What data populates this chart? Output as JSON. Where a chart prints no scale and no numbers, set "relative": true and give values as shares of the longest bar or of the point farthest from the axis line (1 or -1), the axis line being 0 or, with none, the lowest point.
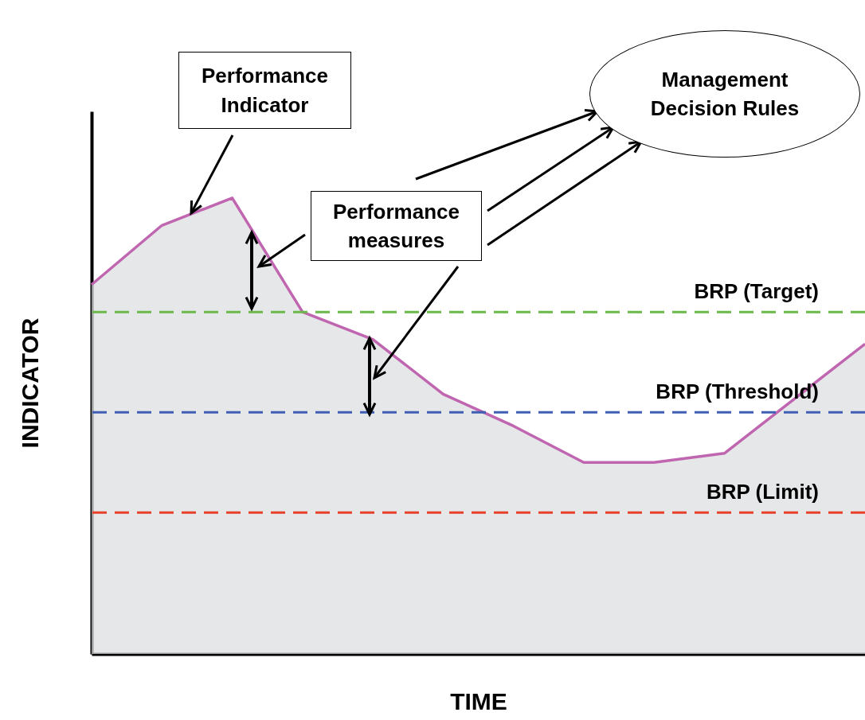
{
  "chart_data": {
    "type": "area",
    "xlabel": "TIME",
    "ylabel": "INDICATOR",
    "relative": true,
    "categories": [
      null,
      null,
      null,
      null,
      null,
      null,
      null,
      null,
      null,
      null,
      null,
      null
    ],
    "series": [
      {
        "color": "#c066b0",
        "values": [
          0.81,
          0.94,
          1,
          0.75,
          0.69,
          0.57,
          0.5,
          0.42,
          0.42,
          0.44,
          0.56,
          0.68
        ]
      }
    ],
    "ref_lines": [
      {
        "axis": "y",
        "value": 0.75,
        "label": "BRP (Target)",
        "color": "#6ab94a",
        "line_style": "dashed"
      },
      {
        "axis": "y",
        "value": 0.53,
        "label": "BRP (Threshold)",
        "color": "#3f5fb4",
        "line_style": "dashed"
      },
      {
        "axis": "y",
        "value": 0.31,
        "label": "BRP (Limit)",
        "color": "#e8402a",
        "line_style": "dashed"
      }
    ],
    "annotations": [
      "Performance Indicator",
      "Performance measures",
      "Management Decision Rules"
    ],
    "grid": false
  }
}
